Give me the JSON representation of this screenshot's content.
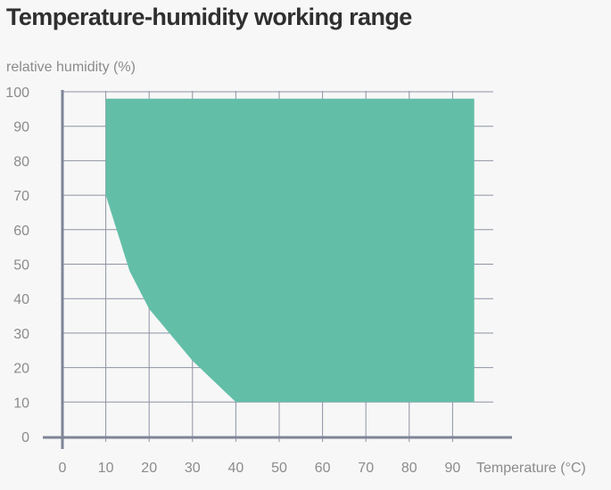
{
  "title": "Temperature-humidity working range",
  "chart_data": {
    "type": "area",
    "ylabel": "relative humidity (%)",
    "xlabel": "Temperature (°C)",
    "xlim": [
      0,
      100
    ],
    "ylim": [
      0,
      100
    ],
    "x_ticks": [
      0,
      10,
      20,
      30,
      40,
      50,
      60,
      70,
      80,
      90
    ],
    "y_ticks": [
      0,
      10,
      20,
      30,
      40,
      50,
      60,
      70,
      80,
      90,
      100
    ],
    "grid": true,
    "series": [
      {
        "x": [
          10,
          95,
          95,
          40,
          30,
          20,
          15.5,
          10
        ],
        "y": [
          98,
          98,
          10,
          10,
          22,
          37,
          48,
          70
        ],
        "color": "#63bea8"
      }
    ]
  }
}
